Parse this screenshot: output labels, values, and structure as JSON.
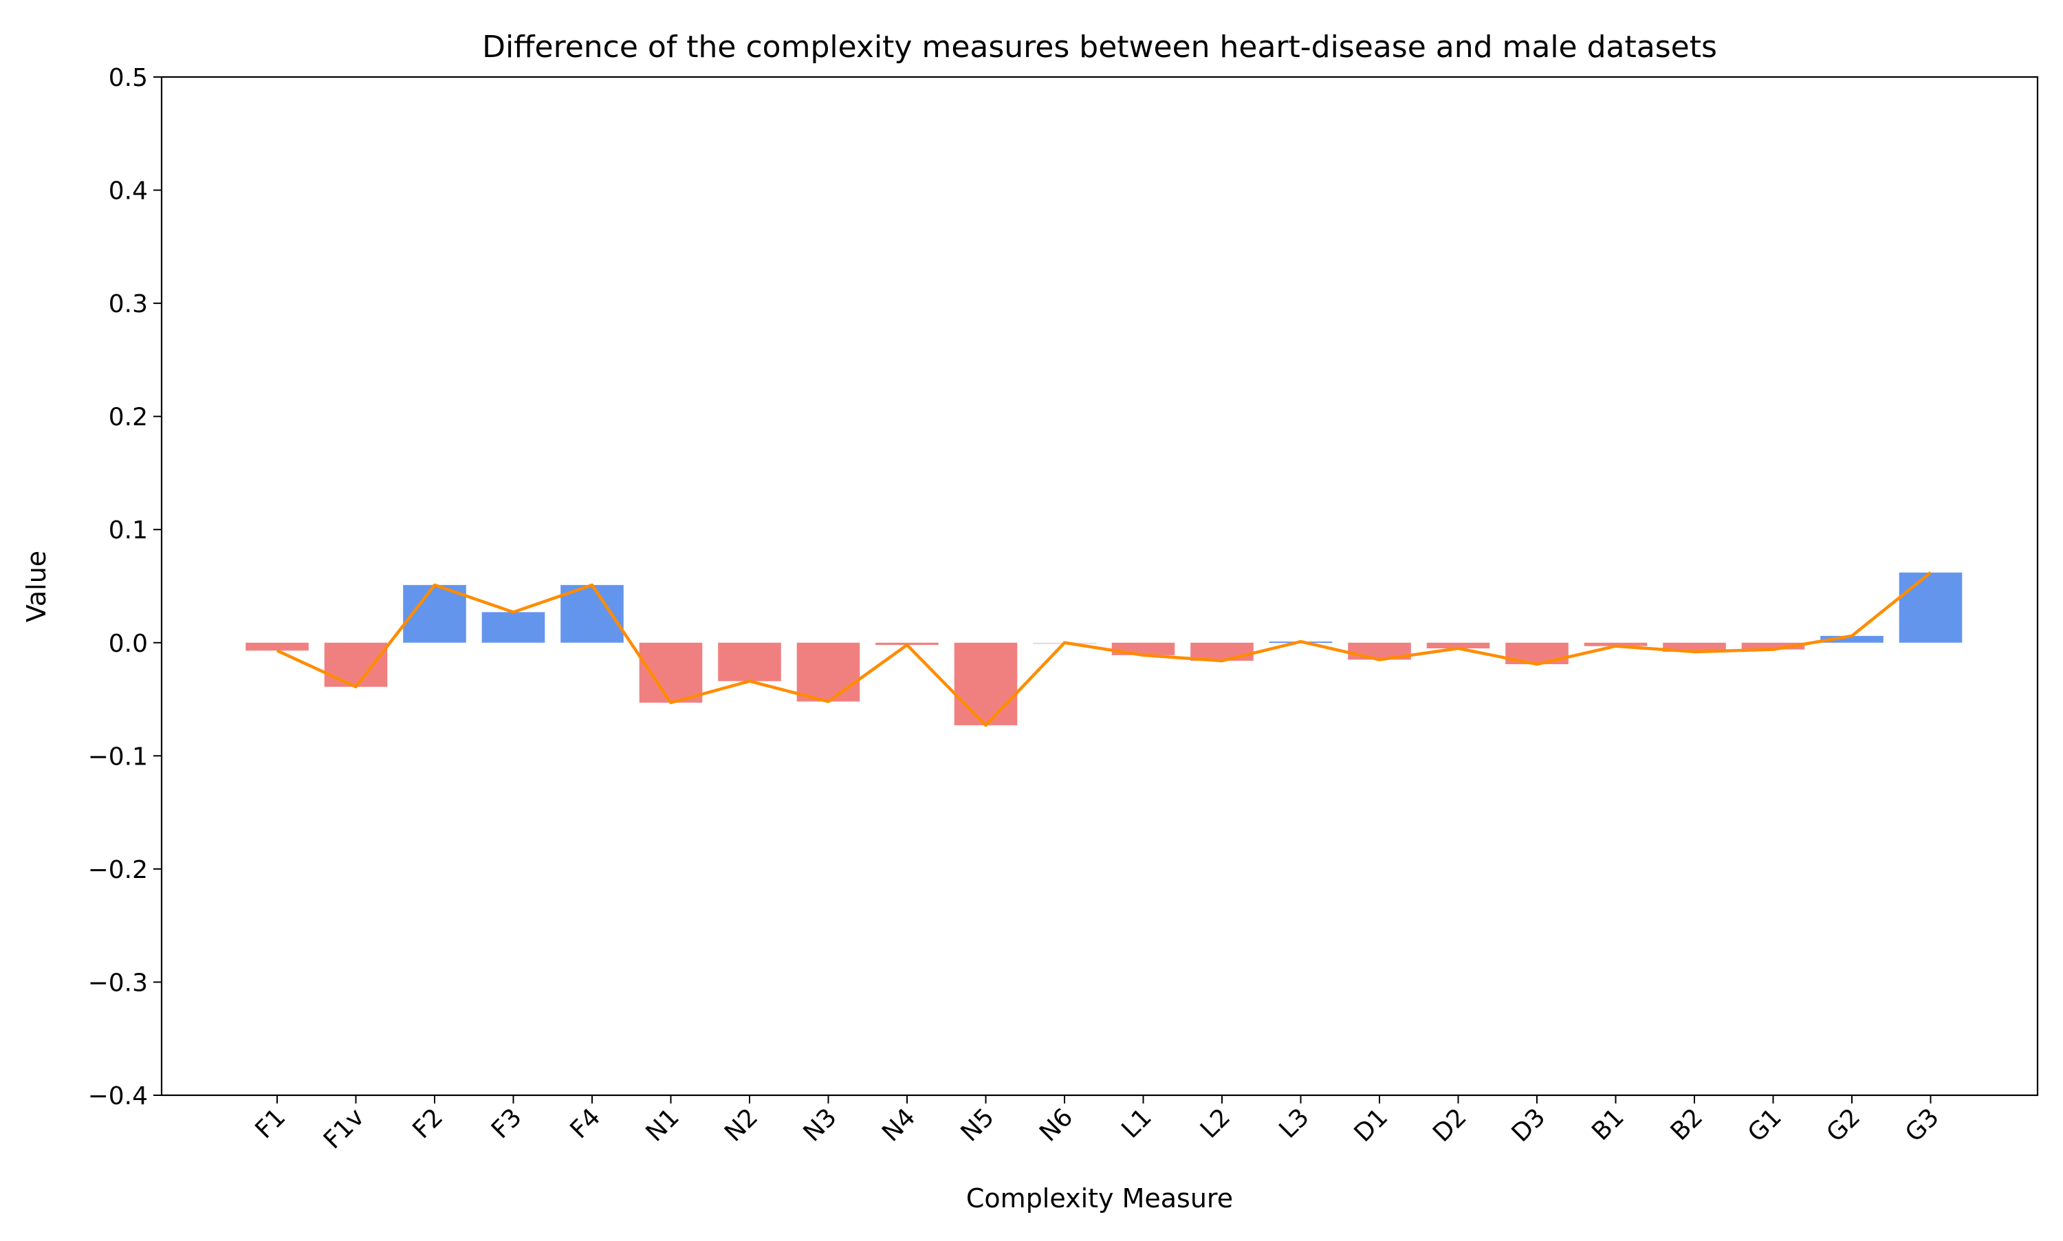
{
  "chart_data": {
    "type": "bar",
    "title": "Difference of the complexity measures between heart-disease and male datasets",
    "xlabel": "Complexity Measure",
    "ylabel": "Value",
    "ylim": [
      -0.4,
      0.5
    ],
    "yticks": [
      -0.4,
      -0.3,
      -0.2,
      -0.1,
      0.0,
      0.1,
      0.2,
      0.3,
      0.4,
      0.5
    ],
    "ytick_labels": [
      "−0.4",
      "−0.3",
      "−0.2",
      "−0.1",
      "0.0",
      "0.1",
      "0.2",
      "0.3",
      "0.4",
      "0.5"
    ],
    "grid": false,
    "legend": "none",
    "categories": [
      "F1",
      "F1v",
      "F2",
      "F3",
      "F4",
      "N1",
      "N2",
      "N3",
      "N4",
      "N5",
      "N6",
      "L1",
      "L2",
      "L3",
      "D1",
      "D2",
      "D3",
      "B1",
      "B2",
      "G1",
      "G2",
      "G3"
    ],
    "values": [
      -0.007,
      -0.039,
      0.051,
      0.027,
      0.051,
      -0.053,
      -0.034,
      -0.052,
      -0.002,
      -0.073,
      0.0,
      -0.011,
      -0.016,
      0.001,
      -0.015,
      -0.005,
      -0.019,
      -0.003,
      -0.008,
      -0.006,
      0.006,
      0.062
    ],
    "overlay_line": "same values as bars",
    "colors": {
      "positive_bar": "#6495ed",
      "negative_bar": "#f08080",
      "line": "#ff8c00",
      "axis": "#000000"
    }
  }
}
